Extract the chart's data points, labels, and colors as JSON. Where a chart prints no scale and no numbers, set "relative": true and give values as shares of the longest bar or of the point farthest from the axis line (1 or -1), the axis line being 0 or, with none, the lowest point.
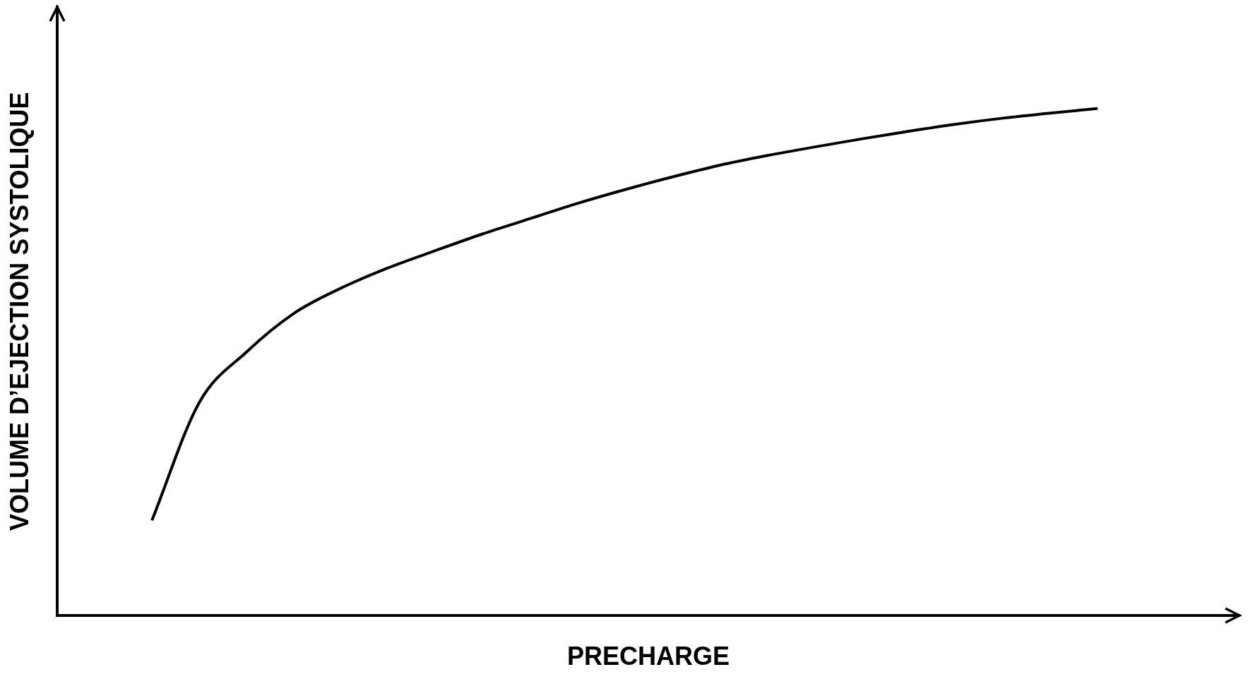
{
  "chart_data": {
    "type": "line",
    "relative": true,
    "xlabel": "PRECHARGE",
    "ylabel": "VOLUME D’EJECTION SYSTOLIQUE",
    "categories": [
      null,
      null,
      null,
      null,
      null,
      null,
      null,
      null,
      null,
      null,
      null,
      null,
      null,
      null,
      null,
      null,
      null,
      null,
      null,
      null,
      null,
      null,
      null,
      null,
      null,
      null
    ],
    "series": [
      {
        "color": "#000000",
        "values": [
          null,
          null,
          0.188,
          0.42,
          0.52,
          0.596,
          0.646,
          0.686,
          0.72,
          0.753,
          0.783,
          0.813,
          0.84,
          0.865,
          0.888,
          0.907,
          0.924,
          0.94,
          0.955,
          0.969,
          0.981,
          0.991,
          1,
          null,
          null,
          null
        ]
      }
    ],
    "grid": false,
    "legend": false,
    "marker": "none",
    "line_style": "solid"
  }
}
